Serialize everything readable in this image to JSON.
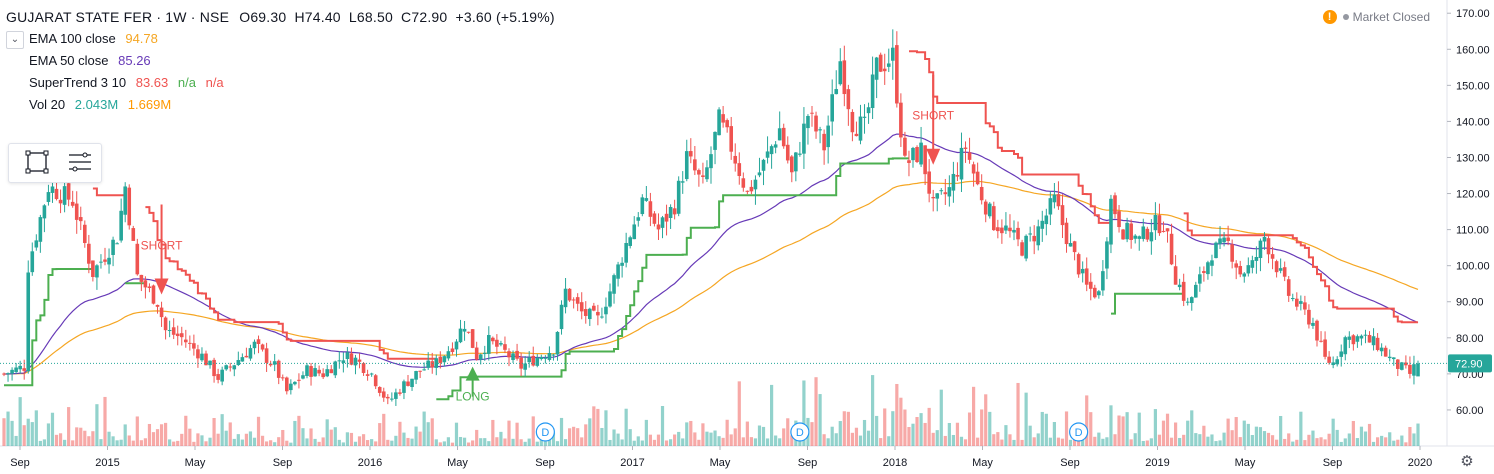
{
  "header": {
    "symbol": "GUJARAT STATE FER · 1W · NSE",
    "ohlc": {
      "o": "O69.30",
      "h": "H74.40",
      "l": "L68.50",
      "c": "C72.90",
      "chg": "+3.60 (+5.19%)"
    }
  },
  "indicators": [
    {
      "name": "EMA 100 close",
      "values": [
        "94.78"
      ],
      "colors": [
        "#f5a623"
      ]
    },
    {
      "name": "EMA 50 close",
      "values": [
        "85.26"
      ],
      "colors": [
        "#673ab7"
      ]
    },
    {
      "name": "SuperTrend 3 10",
      "values": [
        "83.63",
        "n/a",
        "n/a"
      ],
      "colors": [
        "#ef5350",
        "#4caf50",
        "#ef5350"
      ]
    },
    {
      "name": "Vol 20",
      "values": [
        "2.043M",
        "1.669M"
      ],
      "colors": [
        "#26a69a",
        "#ff9800"
      ]
    }
  ],
  "market_status": "Market Closed",
  "price_tag": "72.90",
  "colors": {
    "up": "#26a69a",
    "down": "#ef5350",
    "uptrend": "#4caf50",
    "downtrend": "#ef5350",
    "ema100": "#f5a623",
    "ema50": "#673ab7"
  },
  "chart_data": {
    "type": "candlestick",
    "y_ticks": [
      "170.00",
      "160.00",
      "150.00",
      "140.00",
      "130.00",
      "120.00",
      "110.00",
      "100.00",
      "90.00",
      "80.00",
      "70.00",
      "60.00"
    ],
    "ylim": [
      50,
      172
    ],
    "x_ticks": [
      "Sep",
      "2015",
      "May",
      "Sep",
      "2016",
      "May",
      "Sep",
      "2017",
      "May",
      "Sep",
      "2018",
      "May",
      "Sep",
      "2019",
      "May",
      "Sep",
      "2020"
    ],
    "annotations": [
      {
        "text": "SHORT",
        "direction": "down",
        "price": 92,
        "week": 39
      },
      {
        "text": "LONG",
        "direction": "up",
        "price": 72,
        "week": 116
      },
      {
        "text": "SHORT",
        "direction": "down",
        "price": 128,
        "week": 230
      }
    ],
    "dividend_markers": [
      {
        "text": "D",
        "week": 134
      },
      {
        "text": "D",
        "week": 197
      },
      {
        "text": "D",
        "week": 266
      }
    ],
    "anchors": [
      [
        0,
        70
      ],
      [
        5,
        72
      ],
      [
        6,
        100
      ],
      [
        11,
        122
      ],
      [
        17,
        118
      ],
      [
        22,
        98
      ],
      [
        28,
        108
      ],
      [
        30,
        122
      ],
      [
        33,
        97
      ],
      [
        38,
        90
      ],
      [
        40,
        82
      ],
      [
        44,
        80
      ],
      [
        49,
        75
      ],
      [
        53,
        69
      ],
      [
        58,
        74
      ],
      [
        62,
        78
      ],
      [
        67,
        72
      ],
      [
        70,
        65
      ],
      [
        75,
        71
      ],
      [
        79,
        70
      ],
      [
        84,
        75
      ],
      [
        87,
        74
      ],
      [
        91,
        70
      ],
      [
        95,
        62
      ],
      [
        99,
        67
      ],
      [
        103,
        71
      ],
      [
        107,
        73
      ],
      [
        111,
        78
      ],
      [
        114,
        84
      ],
      [
        117,
        75
      ],
      [
        120,
        79
      ],
      [
        124,
        76
      ],
      [
        128,
        72
      ],
      [
        131,
        74
      ],
      [
        136,
        77
      ],
      [
        139,
        93
      ],
      [
        143,
        87
      ],
      [
        147,
        85
      ],
      [
        150,
        93
      ],
      [
        154,
        106
      ],
      [
        158,
        118
      ],
      [
        162,
        110
      ],
      [
        166,
        117
      ],
      [
        169,
        130
      ],
      [
        173,
        122
      ],
      [
        177,
        140
      ],
      [
        180,
        133
      ],
      [
        184,
        120
      ],
      [
        188,
        128
      ],
      [
        192,
        138
      ],
      [
        195,
        125
      ],
      [
        199,
        142
      ],
      [
        203,
        133
      ],
      [
        207,
        157
      ],
      [
        210,
        140
      ],
      [
        213,
        138
      ],
      [
        216,
        155
      ],
      [
        220,
        158
      ],
      [
        223,
        128
      ],
      [
        227,
        132
      ],
      [
        230,
        116
      ],
      [
        234,
        121
      ],
      [
        238,
        133
      ],
      [
        241,
        122
      ],
      [
        245,
        112
      ],
      [
        248,
        110
      ],
      [
        252,
        105
      ],
      [
        256,
        110
      ],
      [
        260,
        118
      ],
      [
        264,
        105
      ],
      [
        268,
        94
      ],
      [
        271,
        92
      ],
      [
        274,
        118
      ],
      [
        277,
        110
      ],
      [
        281,
        107
      ],
      [
        284,
        111
      ],
      [
        287,
        112
      ],
      [
        290,
        97
      ],
      [
        293,
        89
      ],
      [
        296,
        96
      ],
      [
        299,
        104
      ],
      [
        303,
        106
      ],
      [
        306,
        98
      ],
      [
        309,
        100
      ],
      [
        312,
        108
      ],
      [
        315,
        100
      ],
      [
        318,
        92
      ],
      [
        321,
        88
      ],
      [
        324,
        84
      ],
      [
        327,
        74
      ],
      [
        329,
        73
      ],
      [
        332,
        80
      ],
      [
        336,
        80
      ],
      [
        340,
        78
      ],
      [
        344,
        73
      ],
      [
        348,
        70
      ],
      [
        350,
        73
      ]
    ],
    "volume_weights": [
      [
        0,
        0.5
      ],
      [
        30,
        0.45
      ],
      [
        60,
        0.3
      ],
      [
        90,
        0.35
      ],
      [
        120,
        0.3
      ],
      [
        140,
        0.45
      ],
      [
        160,
        0.5
      ],
      [
        200,
        0.75
      ],
      [
        230,
        0.6
      ],
      [
        260,
        0.55
      ],
      [
        290,
        0.45
      ],
      [
        320,
        0.35
      ],
      [
        350,
        0.3
      ]
    ],
    "volume_weeks": 350,
    "seed": 7
  }
}
